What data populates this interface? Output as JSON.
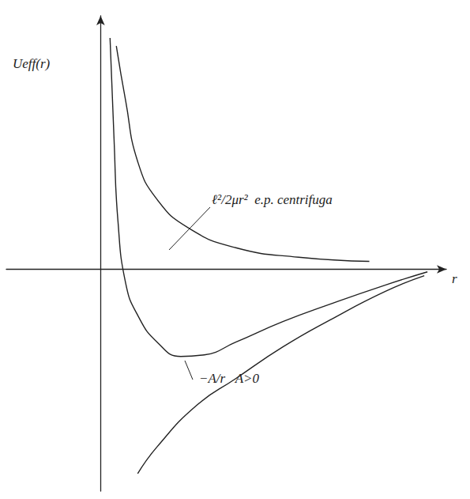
{
  "chart_data": {
    "type": "line",
    "y_label": "Ueff(r)",
    "x_label": "r",
    "xlim": [
      -3,
      11
    ],
    "ylim": [
      -7,
      8
    ],
    "grid": false,
    "tick_labels": false,
    "annotations": [
      "ℓ²/2μr²  e.p. centrifuga",
      "−A/r   A>0"
    ],
    "series": [
      {
        "color": "#222222",
        "x": [
          0.5,
          0.8,
          1.18,
          1.8,
          2.8,
          4.3,
          6.3,
          8.55
        ],
        "values": [
          7.05,
          5.3,
          3.4,
          2.2,
          1.3,
          0.68,
          0.38,
          0.25
        ]
      },
      {
        "color": "#222222",
        "x": [
          1.18,
          1.8,
          3.05,
          4.3,
          5.8,
          7.3,
          9.05,
          10.3
        ],
        "values": [
          -6.45,
          -5.6,
          -4.3,
          -3.45,
          -2.45,
          -1.6,
          -0.7,
          -0.2
        ]
      },
      {
        "color": "#222222",
        "x": [
          0.3,
          0.43,
          0.55,
          0.8,
          1.18,
          1.8,
          2.55,
          3.3,
          4.3,
          5.8,
          7.3,
          9.05,
          10.4
        ],
        "values": [
          7.3,
          4.05,
          1.55,
          -0.45,
          -1.45,
          -2.3,
          -2.75,
          -2.7,
          -2.3,
          -1.65,
          -1.1,
          -0.5,
          -0.08
        ]
      }
    ]
  }
}
